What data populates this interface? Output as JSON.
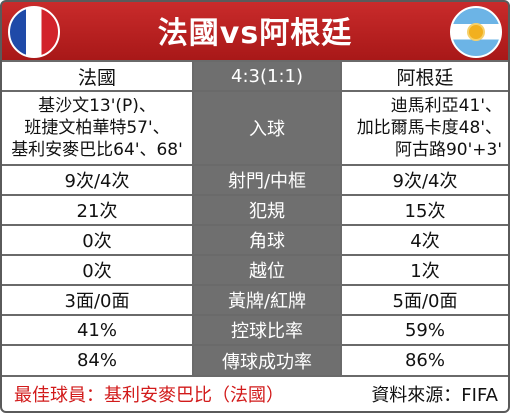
{
  "title": "法國vs阿根廷",
  "colors": {
    "header": "#c92b2b",
    "best_player": "#d21b1b"
  },
  "teams": {
    "left": "法國",
    "right": "阿根廷"
  },
  "score": "4:3(1:1)",
  "goals": {
    "label": "入球",
    "left": [
      "基沙文13'(P)、",
      "班捷文柏華特57'、",
      "基利安麥巴比64'、68'"
    ],
    "right": [
      "迪馬利亞41'、",
      "加比爾馬卡度48'、",
      "阿古路90'+3'"
    ]
  },
  "stats": [
    {
      "label": "射門/中框",
      "left": "9次/4次",
      "right": "9次/4次"
    },
    {
      "label": "犯規",
      "left": "21次",
      "right": "15次"
    },
    {
      "label": "角球",
      "left": "0次",
      "right": "4次"
    },
    {
      "label": "越位",
      "left": "0次",
      "right": "1次"
    },
    {
      "label": "黃牌/紅牌",
      "left": "3面/0面",
      "right": "5面/0面"
    },
    {
      "label": "控球比率",
      "left": "41%",
      "right": "59%"
    },
    {
      "label": "傳球成功率",
      "left": "84%",
      "right": "86%"
    }
  ],
  "footer": {
    "best_player": "最佳球員：基利安麥巴比（法國）",
    "source": "資料來源：FIFA"
  }
}
